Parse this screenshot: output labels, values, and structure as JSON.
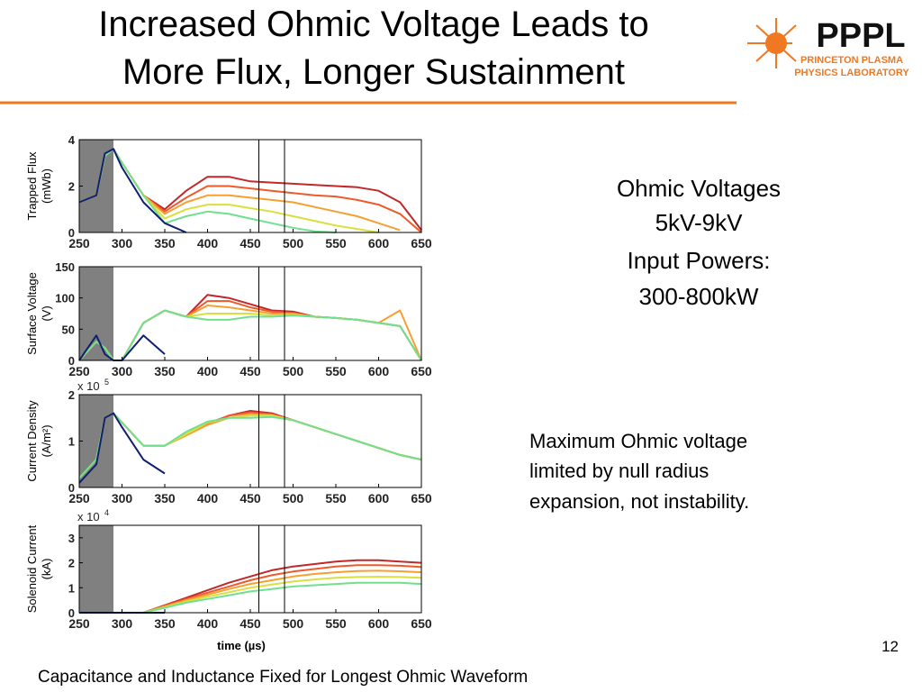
{
  "slide": {
    "title": [
      "Increased Ohmic Voltage Leads to",
      "More Flux, Longer Sustainment"
    ],
    "logo": {
      "name": "PPPL",
      "line1": "PRINCETON PLASMA",
      "line2": "PHYSICS LABORATORY"
    },
    "note1": [
      "Ohmic Voltages",
      "5kV-9kV",
      "Input Powers:",
      "300-800kW"
    ],
    "note2": [
      "Maximum Ohmic voltage",
      "limited by null radius",
      "expansion, not instability."
    ],
    "footer": "Capacitance and Inductance Fixed for Longest Ohmic Waveform",
    "page": "12"
  },
  "chart_data": [
    {
      "type": "line",
      "ylabel": [
        "Trapped Flux",
        "(mWb)"
      ],
      "xlim": [
        250,
        650
      ],
      "xticks": [
        250,
        300,
        350,
        400,
        450,
        500,
        550,
        600,
        650
      ],
      "ylim": [
        0,
        4
      ],
      "yticks": [
        0,
        2,
        4
      ],
      "shaded": [
        250,
        290
      ],
      "vlines": [
        460,
        490
      ],
      "x": [
        250,
        270,
        280,
        290,
        300,
        325,
        350,
        375,
        400,
        425,
        450,
        475,
        500,
        525,
        550,
        575,
        600,
        625,
        650
      ],
      "series": [
        {
          "color": "#c0282a",
          "values": [
            1.3,
            1.6,
            3.3,
            3.6,
            3.0,
            1.6,
            1.0,
            1.8,
            2.4,
            2.4,
            2.2,
            2.15,
            2.1,
            2.05,
            2.0,
            1.95,
            1.8,
            1.3,
            0.1
          ]
        },
        {
          "color": "#ee5a2a",
          "values": [
            1.3,
            1.6,
            3.3,
            3.6,
            3.0,
            1.6,
            0.9,
            1.5,
            2.0,
            2.0,
            1.9,
            1.8,
            1.7,
            1.6,
            1.55,
            1.4,
            1.2,
            0.8,
            0
          ]
        },
        {
          "color": "#f5a030",
          "values": [
            1.3,
            1.6,
            3.3,
            3.6,
            3.0,
            1.6,
            0.8,
            1.3,
            1.6,
            1.6,
            1.5,
            1.4,
            1.3,
            1.1,
            0.9,
            0.7,
            0.4,
            0.1,
            null
          ]
        },
        {
          "color": "#d8e040",
          "values": [
            1.3,
            1.6,
            3.3,
            3.6,
            3.0,
            1.6,
            0.6,
            1.0,
            1.2,
            1.2,
            1.05,
            0.9,
            0.7,
            0.5,
            0.3,
            0.15,
            0,
            null,
            null
          ]
        },
        {
          "color": "#70e090",
          "values": [
            1.3,
            1.6,
            3.3,
            3.6,
            3.0,
            1.6,
            0.4,
            0.7,
            0.9,
            0.8,
            0.6,
            0.4,
            0.2,
            0.05,
            0,
            null,
            null,
            null,
            null
          ]
        },
        {
          "color": "#102070",
          "values": [
            1.3,
            1.6,
            3.4,
            3.6,
            2.8,
            1.3,
            0.4,
            0,
            null,
            null,
            null,
            null,
            null,
            null,
            null,
            null,
            null,
            null,
            null
          ]
        }
      ]
    },
    {
      "type": "line",
      "ylabel": [
        "Surface Voltage",
        "(V)"
      ],
      "xlim": [
        250,
        650
      ],
      "xticks": [
        250,
        300,
        350,
        400,
        450,
        500,
        550,
        600,
        650
      ],
      "ylim": [
        0,
        150
      ],
      "yticks": [
        0,
        50,
        100,
        150
      ],
      "shaded": [
        250,
        290
      ],
      "vlines": [
        460,
        490
      ],
      "x": [
        250,
        270,
        280,
        290,
        300,
        325,
        350,
        375,
        400,
        425,
        450,
        475,
        500,
        525,
        550,
        575,
        600,
        625,
        650
      ],
      "series": [
        {
          "color": "#c0282a",
          "values": [
            0,
            30,
            20,
            0,
            0,
            60,
            80,
            70,
            105,
            100,
            90,
            80,
            78,
            70,
            68,
            65,
            60,
            55,
            0
          ]
        },
        {
          "color": "#ee5a2a",
          "values": [
            0,
            30,
            20,
            0,
            0,
            60,
            80,
            70,
            95,
            95,
            85,
            78,
            76,
            70,
            68,
            65,
            60,
            55,
            0
          ]
        },
        {
          "color": "#f5a030",
          "values": [
            0,
            30,
            20,
            0,
            0,
            60,
            80,
            70,
            88,
            85,
            80,
            75,
            75,
            70,
            68,
            65,
            60,
            80,
            0
          ]
        },
        {
          "color": "#d8e040",
          "values": [
            0,
            30,
            20,
            0,
            0,
            60,
            80,
            70,
            75,
            75,
            75,
            72,
            73,
            70,
            68,
            65,
            60,
            55,
            0
          ]
        },
        {
          "color": "#70e090",
          "values": [
            0,
            30,
            20,
            0,
            0,
            60,
            80,
            70,
            65,
            65,
            70,
            70,
            72,
            70,
            68,
            65,
            60,
            55,
            0
          ]
        },
        {
          "color": "#102070",
          "values": [
            0,
            40,
            10,
            0,
            0,
            40,
            10,
            null,
            null,
            null,
            null,
            null,
            null,
            null,
            null,
            null,
            null,
            null,
            null
          ]
        }
      ]
    },
    {
      "type": "line",
      "ylabel": [
        "Current Density",
        "(A/m²)"
      ],
      "y_multiplier": [
        "x 10",
        "5"
      ],
      "xlim": [
        250,
        650
      ],
      "xticks": [
        250,
        300,
        350,
        400,
        450,
        500,
        550,
        600,
        650
      ],
      "ylim": [
        0,
        2
      ],
      "yticks": [
        0,
        1,
        2
      ],
      "shaded": [
        250,
        290
      ],
      "vlines": [
        460,
        490
      ],
      "x": [
        250,
        270,
        280,
        290,
        300,
        325,
        350,
        375,
        400,
        425,
        450,
        475,
        500,
        525,
        550,
        575,
        600,
        625,
        650
      ],
      "series": [
        {
          "color": "#c0282a",
          "values": [
            0.2,
            0.6,
            1.5,
            1.6,
            1.4,
            0.9,
            0.9,
            1.15,
            1.35,
            1.55,
            1.65,
            1.6,
            1.45,
            1.3,
            1.15,
            1.0,
            0.85,
            0.7,
            0.6
          ]
        },
        {
          "color": "#ee5a2a",
          "values": [
            0.2,
            0.6,
            1.5,
            1.6,
            1.4,
            0.9,
            0.9,
            1.15,
            1.38,
            1.55,
            1.62,
            1.58,
            1.45,
            1.3,
            1.15,
            1.0,
            0.85,
            0.7,
            0.6
          ]
        },
        {
          "color": "#f5a030",
          "values": [
            0.2,
            0.6,
            1.5,
            1.6,
            1.4,
            0.9,
            0.9,
            1.12,
            1.35,
            1.5,
            1.58,
            1.56,
            1.45,
            1.3,
            1.15,
            1.0,
            0.85,
            0.7,
            0.6
          ]
        },
        {
          "color": "#d8e040",
          "values": [
            0.2,
            0.6,
            1.5,
            1.6,
            1.4,
            0.9,
            0.9,
            1.15,
            1.4,
            1.5,
            1.55,
            1.55,
            1.45,
            1.3,
            1.15,
            1.0,
            0.85,
            0.7,
            0.6
          ]
        },
        {
          "color": "#70e090",
          "values": [
            0.2,
            0.6,
            1.5,
            1.6,
            1.4,
            0.9,
            0.9,
            1.2,
            1.42,
            1.5,
            1.5,
            1.52,
            1.45,
            1.3,
            1.15,
            1.0,
            0.85,
            0.7,
            0.6
          ]
        },
        {
          "color": "#102070",
          "values": [
            0.1,
            0.5,
            1.5,
            1.6,
            1.3,
            0.6,
            0.3,
            null,
            null,
            null,
            null,
            null,
            null,
            null,
            null,
            null,
            null,
            null,
            null
          ]
        }
      ]
    },
    {
      "type": "line",
      "ylabel": [
        "Solenoid Current",
        "(kA)"
      ],
      "y_multiplier": [
        "x 10",
        "4"
      ],
      "xlabel": "time (µs)",
      "xlim": [
        250,
        650
      ],
      "xticks": [
        250,
        300,
        350,
        400,
        450,
        500,
        550,
        600,
        650
      ],
      "ylim": [
        0,
        3.5
      ],
      "yticks": [
        0,
        1,
        2,
        3
      ],
      "shaded": [
        250,
        290
      ],
      "vlines": [
        460,
        490
      ],
      "x": [
        250,
        270,
        280,
        290,
        300,
        325,
        350,
        375,
        400,
        425,
        450,
        475,
        500,
        525,
        550,
        575,
        600,
        625,
        650
      ],
      "series": [
        {
          "color": "#c0282a",
          "values": [
            0,
            0,
            0,
            0,
            0,
            0,
            0.3,
            0.6,
            0.9,
            1.2,
            1.45,
            1.7,
            1.85,
            1.95,
            2.05,
            2.1,
            2.1,
            2.05,
            2.0
          ]
        },
        {
          "color": "#ee5a2a",
          "values": [
            0,
            0,
            0,
            0,
            0,
            0,
            0.28,
            0.55,
            0.8,
            1.05,
            1.3,
            1.5,
            1.65,
            1.75,
            1.85,
            1.9,
            1.9,
            1.88,
            1.83
          ]
        },
        {
          "color": "#f5a030",
          "values": [
            0,
            0,
            0,
            0,
            0,
            0,
            0.25,
            0.5,
            0.72,
            0.95,
            1.15,
            1.3,
            1.45,
            1.55,
            1.62,
            1.67,
            1.68,
            1.66,
            1.62
          ]
        },
        {
          "color": "#d8e040",
          "values": [
            0,
            0,
            0,
            0,
            0,
            0,
            0.22,
            0.45,
            0.64,
            0.82,
            1.0,
            1.13,
            1.25,
            1.33,
            1.4,
            1.43,
            1.44,
            1.43,
            1.4
          ]
        },
        {
          "color": "#70e090",
          "values": [
            0,
            0,
            0,
            0,
            0,
            0,
            0.2,
            0.4,
            0.55,
            0.7,
            0.85,
            0.95,
            1.05,
            1.1,
            1.15,
            1.2,
            1.2,
            1.2,
            1.15
          ]
        },
        {
          "color": "#102070",
          "values": [
            0,
            0,
            0,
            0,
            0,
            0,
            0,
            null,
            null,
            null,
            null,
            null,
            null,
            null,
            null,
            null,
            null,
            null,
            null
          ]
        }
      ]
    }
  ]
}
